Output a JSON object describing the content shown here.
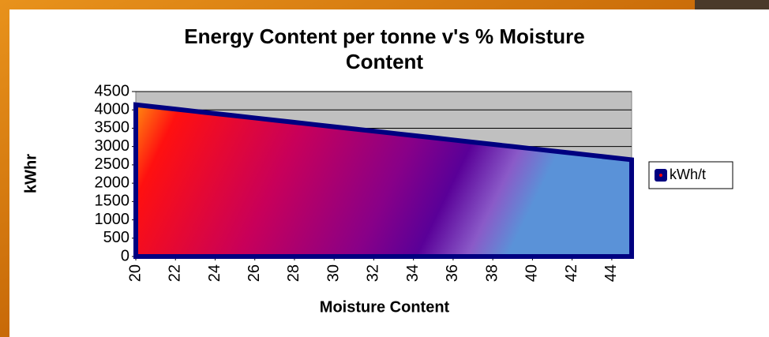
{
  "chart_data": {
    "type": "area",
    "title": "Energy Content per tonne v's % Moisture Content",
    "x_label": "Moisture Content",
    "y_label": "kWhr",
    "x": [
      20,
      21,
      22,
      23,
      24,
      25,
      26,
      27,
      28,
      29,
      30,
      31,
      32,
      33,
      34,
      35,
      36,
      37,
      38,
      39,
      40,
      41,
      42,
      43,
      44,
      45
    ],
    "series": [
      {
        "name": "kWh/t",
        "color": "#000080",
        "values": [
          4140,
          4080,
          4020,
          3960,
          3900,
          3840,
          3780,
          3720,
          3660,
          3600,
          3540,
          3480,
          3420,
          3360,
          3300,
          3240,
          3180,
          3120,
          3060,
          3000,
          2940,
          2880,
          2820,
          2760,
          2700,
          2640
        ]
      }
    ],
    "xlim": [
      20,
      45
    ],
    "xticks": [
      20,
      22,
      24,
      26,
      28,
      30,
      32,
      34,
      36,
      38,
      40,
      42,
      44
    ],
    "ylim": [
      0,
      4500
    ],
    "yticks": [
      0,
      500,
      1000,
      1500,
      2000,
      2500,
      3000,
      3500,
      4000,
      4500
    ],
    "grid": true,
    "legend": "right"
  }
}
